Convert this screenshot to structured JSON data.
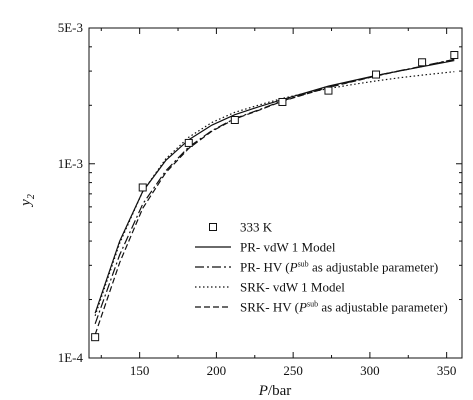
{
  "chart_data": {
    "type": "scatter",
    "title": "",
    "xlabel": "P/bar",
    "ylabel": "y2",
    "xlim": [
      117,
      360
    ],
    "ylim": [
      0.0001,
      0.005
    ],
    "yscale": "log",
    "grid": false,
    "legend_position": "lower-right",
    "x_ticks": [
      150,
      200,
      250,
      300,
      350
    ],
    "y_ticks": [
      {
        "value": 0.0001,
        "label": "1E-4"
      },
      {
        "value": 0.001,
        "label": "1E-3"
      },
      {
        "value": 0.005,
        "label": "5E-3"
      }
    ],
    "series": [
      {
        "name": "333 K",
        "kind": "markers",
        "marker": "square",
        "color": "#111111",
        "x": [
          121,
          152,
          182,
          212,
          243,
          273,
          304,
          334,
          355
        ],
        "y": [
          0.000128,
          0.000755,
          0.00128,
          0.00168,
          0.00208,
          0.00238,
          0.00288,
          0.00333,
          0.00363
        ]
      },
      {
        "name": "PR- vdW 1 Model",
        "kind": "line",
        "dash": "solid",
        "color": "#111111",
        "x": [
          121,
          137,
          152,
          167,
          182,
          197,
          212,
          228,
          243,
          258,
          273,
          289,
          304,
          319,
          334,
          355
        ],
        "y": [
          0.00017,
          0.0004,
          0.00072,
          0.00104,
          0.00133,
          0.00158,
          0.00179,
          0.00197,
          0.00214,
          0.00232,
          0.00251,
          0.00268,
          0.00285,
          0.003,
          0.00316,
          0.0034
        ]
      },
      {
        "name": "PR- HV (Psub as adjustable parameter)",
        "kind": "line",
        "dash": "dashdot",
        "color": "#111111",
        "x": [
          121,
          137,
          152,
          167,
          182,
          197,
          212,
          228,
          243,
          258,
          273,
          289,
          304,
          319,
          334,
          355
        ],
        "y": [
          0.00015,
          0.00034,
          0.00062,
          0.00092,
          0.00122,
          0.00148,
          0.00171,
          0.0019,
          0.00211,
          0.00229,
          0.00248,
          0.00266,
          0.00284,
          0.00301,
          0.00318,
          0.00345
        ]
      },
      {
        "name": "SRK- vdW 1 Model",
        "kind": "line",
        "dash": "dotted",
        "color": "#111111",
        "x": [
          121,
          137,
          152,
          167,
          182,
          197,
          212,
          228,
          243,
          258,
          273,
          289,
          304,
          319,
          334,
          355
        ],
        "y": [
          0.000165,
          0.00039,
          0.00072,
          0.00106,
          0.00137,
          0.00163,
          0.00184,
          0.00201,
          0.00217,
          0.00231,
          0.00244,
          0.00256,
          0.00267,
          0.00277,
          0.00286,
          0.00298
        ]
      },
      {
        "name": "SRK- HV (Psub as adjustable parameter)",
        "kind": "line",
        "dash": "dashed",
        "color": "#111111",
        "x": [
          121,
          137,
          152,
          167,
          182,
          197,
          212,
          228,
          243,
          258,
          273,
          289,
          304,
          319,
          334,
          355
        ],
        "y": [
          0.000132,
          0.00031,
          0.00059,
          0.0009,
          0.0012,
          0.00147,
          0.0017,
          0.00189,
          0.0021,
          0.00228,
          0.00247,
          0.00265,
          0.00283,
          0.003,
          0.00317,
          0.00344
        ]
      }
    ],
    "legend": [
      {
        "text": "333 K"
      },
      {
        "text": "PR- vdW 1 Model"
      },
      {
        "text_pre": "PR- HV (",
        "text_italic": "P",
        "text_sup": "sub",
        "text_post": " as adjustable parameter)"
      },
      {
        "text": "SRK- vdW 1 Model"
      },
      {
        "text_pre": "SRK- HV (",
        "text_italic": "P",
        "text_sup": "sub",
        "text_post": " as adjustable parameter)"
      }
    ]
  }
}
